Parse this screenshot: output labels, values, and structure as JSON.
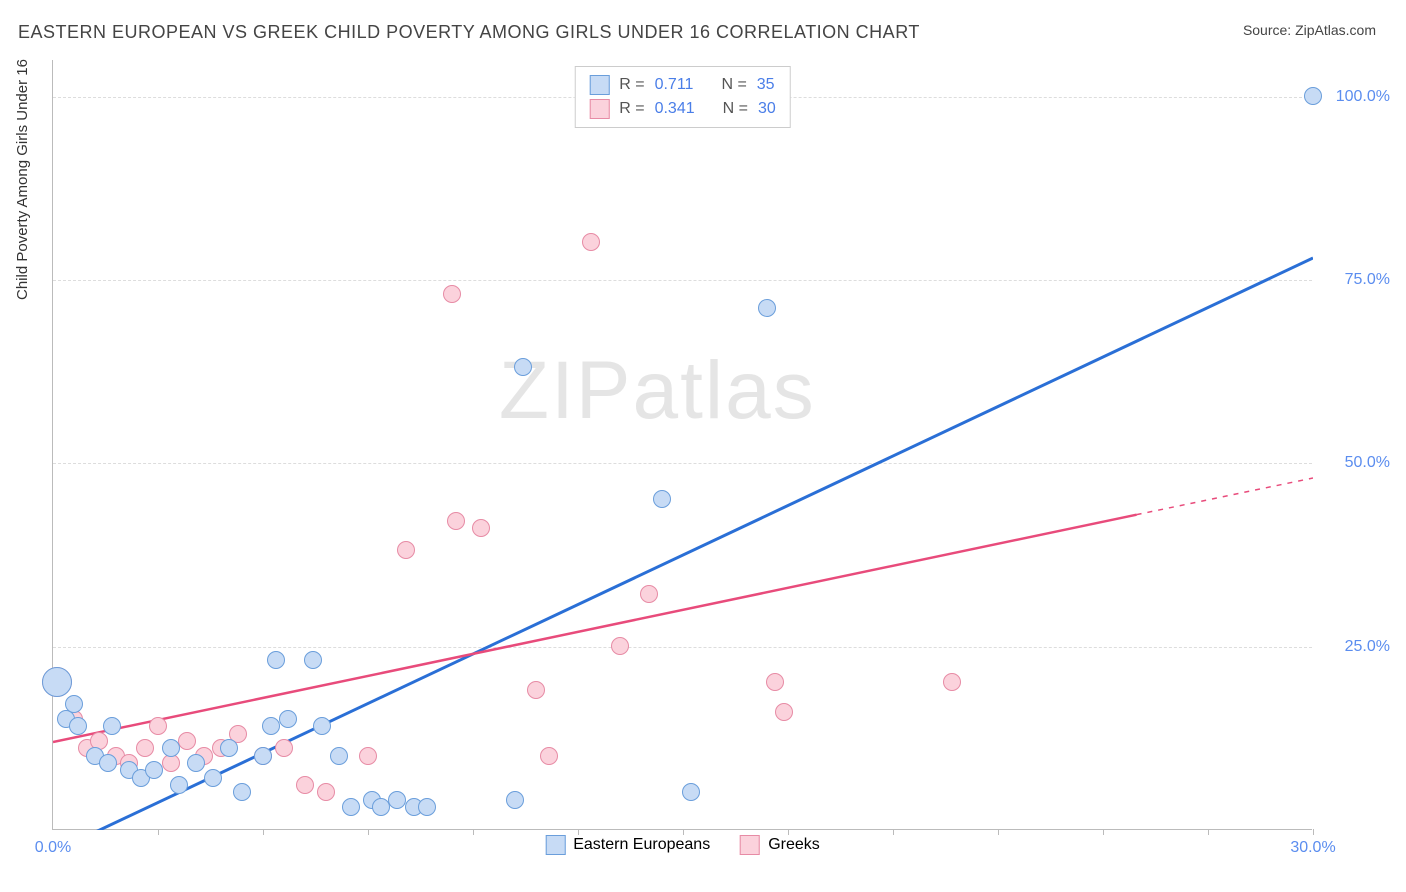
{
  "title": "EASTERN EUROPEAN VS GREEK CHILD POVERTY AMONG GIRLS UNDER 16 CORRELATION CHART",
  "source_label": "Source: ",
  "source_name": "ZipAtlas.com",
  "y_axis_label": "Child Poverty Among Girls Under 16",
  "watermark": {
    "a": "ZIP",
    "b": "atlas"
  },
  "chart": {
    "type": "scatter",
    "xlim": [
      0,
      30
    ],
    "ylim": [
      0,
      105
    ],
    "x_ticks": [
      0,
      30
    ],
    "x_tick_marks": [
      2.5,
      5,
      7.5,
      10,
      12.5,
      15,
      17.5,
      20,
      22.5,
      25,
      27.5,
      30
    ],
    "y_ticks": [
      25,
      50,
      75,
      100
    ],
    "x_tick_labels": [
      "0.0%",
      "30.0%"
    ],
    "y_tick_labels": [
      "25.0%",
      "50.0%",
      "75.0%",
      "100.0%"
    ],
    "background_color": "#ffffff",
    "grid_color": "#dddddd",
    "axis_color": "#bbbbbb",
    "tick_label_color": "#5b8def",
    "marker_size": 18,
    "big_marker_size": 30,
    "series": [
      {
        "name": "Eastern Europeans",
        "fill": "#c7dbf5",
        "stroke": "#6a9edb",
        "regression": {
          "x1": 0,
          "y1": -3,
          "x2": 30,
          "y2": 78,
          "color": "#2a6fd6",
          "width": 3
        },
        "stats": {
          "R": "0.711",
          "N": "35"
        },
        "points": [
          {
            "x": 0.1,
            "y": 20,
            "r": 30
          },
          {
            "x": 0.3,
            "y": 15
          },
          {
            "x": 0.5,
            "y": 17
          },
          {
            "x": 0.6,
            "y": 14
          },
          {
            "x": 1.0,
            "y": 10
          },
          {
            "x": 1.3,
            "y": 9
          },
          {
            "x": 1.4,
            "y": 14
          },
          {
            "x": 1.8,
            "y": 8
          },
          {
            "x": 2.1,
            "y": 7
          },
          {
            "x": 2.4,
            "y": 8
          },
          {
            "x": 2.8,
            "y": 11
          },
          {
            "x": 3.0,
            "y": 6
          },
          {
            "x": 3.4,
            "y": 9
          },
          {
            "x": 3.8,
            "y": 7
          },
          {
            "x": 4.2,
            "y": 11
          },
          {
            "x": 4.5,
            "y": 5
          },
          {
            "x": 5.0,
            "y": 10
          },
          {
            "x": 5.2,
            "y": 14
          },
          {
            "x": 5.3,
            "y": 23
          },
          {
            "x": 5.6,
            "y": 15
          },
          {
            "x": 6.2,
            "y": 23
          },
          {
            "x": 6.4,
            "y": 14
          },
          {
            "x": 6.8,
            "y": 10
          },
          {
            "x": 7.1,
            "y": 3
          },
          {
            "x": 7.6,
            "y": 4
          },
          {
            "x": 7.8,
            "y": 3
          },
          {
            "x": 8.2,
            "y": 4
          },
          {
            "x": 8.6,
            "y": 3
          },
          {
            "x": 8.9,
            "y": 3
          },
          {
            "x": 11.0,
            "y": 4
          },
          {
            "x": 11.2,
            "y": 63
          },
          {
            "x": 14.5,
            "y": 45
          },
          {
            "x": 15.2,
            "y": 5
          },
          {
            "x": 17.0,
            "y": 71
          },
          {
            "x": 30.0,
            "y": 100
          }
        ]
      },
      {
        "name": "Greeks",
        "fill": "#fbd2dc",
        "stroke": "#e78ba5",
        "regression": {
          "x1": 0,
          "y1": 12,
          "x2": 25.8,
          "y2": 43,
          "color": "#e84b7b",
          "width": 2.5,
          "dash_x1": 25.8,
          "dash_y1": 43,
          "dash_x2": 30,
          "dash_y2": 48
        },
        "stats": {
          "R": "0.341",
          "N": "30"
        },
        "points": [
          {
            "x": 0.1,
            "y": 20,
            "r": 30
          },
          {
            "x": 0.5,
            "y": 15
          },
          {
            "x": 0.8,
            "y": 11
          },
          {
            "x": 1.1,
            "y": 12
          },
          {
            "x": 1.5,
            "y": 10
          },
          {
            "x": 1.8,
            "y": 9
          },
          {
            "x": 2.2,
            "y": 11
          },
          {
            "x": 2.5,
            "y": 14
          },
          {
            "x": 2.8,
            "y": 9
          },
          {
            "x": 3.2,
            "y": 12
          },
          {
            "x": 3.6,
            "y": 10
          },
          {
            "x": 4.0,
            "y": 11
          },
          {
            "x": 4.4,
            "y": 13
          },
          {
            "x": 5.0,
            "y": 10
          },
          {
            "x": 5.5,
            "y": 11
          },
          {
            "x": 6.0,
            "y": 6
          },
          {
            "x": 6.5,
            "y": 5
          },
          {
            "x": 7.5,
            "y": 10
          },
          {
            "x": 8.4,
            "y": 38
          },
          {
            "x": 9.5,
            "y": 73
          },
          {
            "x": 9.6,
            "y": 42
          },
          {
            "x": 10.2,
            "y": 41
          },
          {
            "x": 11.5,
            "y": 19
          },
          {
            "x": 11.8,
            "y": 10
          },
          {
            "x": 12.8,
            "y": 80
          },
          {
            "x": 13.5,
            "y": 25
          },
          {
            "x": 14.2,
            "y": 32
          },
          {
            "x": 17.2,
            "y": 20
          },
          {
            "x": 17.4,
            "y": 16
          },
          {
            "x": 21.4,
            "y": 20
          }
        ]
      }
    ]
  },
  "legend_top": {
    "r_label": "R  = ",
    "n_label": "N  = "
  },
  "legend_bottom": {
    "series1": "Eastern Europeans",
    "series2": "Greeks"
  }
}
